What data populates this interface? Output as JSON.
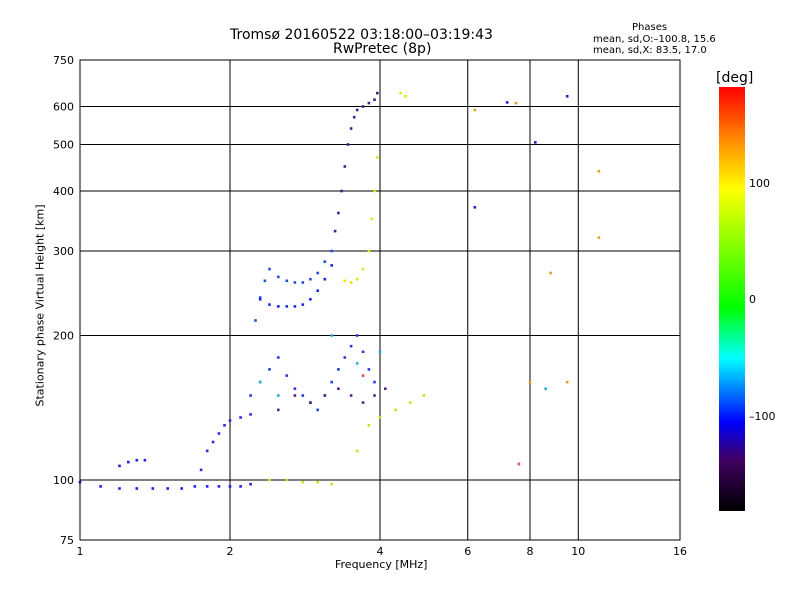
{
  "header": {
    "title_line1": "Tromsø 20160522 03:18:00–03:19:43",
    "title_line2": "RwPretec (8p)",
    "stats_heading": "Phases",
    "stats_line1": "mean, sd,O:–100.8, 15.6",
    "stats_line2": "mean, sd,X:  83.5, 17.0"
  },
  "colorbar": {
    "unit": "[deg]",
    "ticks": [
      "100",
      "0",
      "–100"
    ],
    "colors": [
      "#ff0000",
      "#ff9a00",
      "#ffff00",
      "#00ff00",
      "#00ffff",
      "#0000ff",
      "#400060",
      "#000000"
    ]
  },
  "chart_data": {
    "type": "scatter",
    "xlabel": "Frequency [MHz]",
    "ylabel": "Stationary phase Virtual Height [km]",
    "x_scale": "log2",
    "y_scale": "log",
    "xlim": [
      1,
      16
    ],
    "ylim": [
      75,
      750
    ],
    "x_ticks": [
      "1",
      "2",
      "4",
      "6",
      "8",
      "10",
      "16"
    ],
    "y_ticks": [
      "75",
      "100",
      "200",
      "300",
      "400",
      "500",
      "600",
      "750"
    ],
    "grid": true,
    "series": [
      {
        "color": "#1e1ee6",
        "points": [
          [
            1.0,
            99
          ],
          [
            1.1,
            97
          ],
          [
            1.2,
            96
          ],
          [
            1.3,
            96
          ],
          [
            1.4,
            96
          ],
          [
            1.5,
            96
          ],
          [
            1.6,
            96
          ],
          [
            1.7,
            97
          ],
          [
            1.8,
            97
          ],
          [
            1.9,
            97
          ],
          [
            2.0,
            97
          ],
          [
            2.1,
            97
          ],
          [
            2.2,
            98
          ]
        ]
      },
      {
        "color": "#2020e0",
        "points": [
          [
            1.2,
            107
          ],
          [
            1.25,
            109
          ],
          [
            1.3,
            110
          ],
          [
            1.35,
            110
          ]
        ]
      },
      {
        "color": "#2a2ae0",
        "points": [
          [
            1.75,
            105
          ],
          [
            1.8,
            115
          ],
          [
            1.85,
            120
          ],
          [
            1.9,
            125
          ],
          [
            1.95,
            130
          ],
          [
            2.0,
            133
          ],
          [
            2.1,
            135
          ],
          [
            2.2,
            137
          ]
        ]
      },
      {
        "color": "#2a3adc",
        "points": [
          [
            2.2,
            150
          ],
          [
            2.3,
            160
          ],
          [
            2.4,
            170
          ],
          [
            2.5,
            180
          ],
          [
            2.6,
            165
          ],
          [
            2.7,
            155
          ],
          [
            2.8,
            150
          ],
          [
            2.9,
            145
          ],
          [
            3.0,
            140
          ],
          [
            3.1,
            150
          ],
          [
            3.2,
            160
          ],
          [
            3.3,
            170
          ],
          [
            3.4,
            180
          ],
          [
            3.5,
            190
          ],
          [
            3.6,
            200
          ],
          [
            3.7,
            185
          ],
          [
            3.8,
            170
          ],
          [
            3.9,
            160
          ]
        ]
      },
      {
        "color": "#2050e0",
        "points": [
          [
            2.25,
            215
          ],
          [
            2.3,
            240
          ],
          [
            2.35,
            260
          ],
          [
            2.4,
            275
          ],
          [
            2.5,
            265
          ],
          [
            2.6,
            260
          ],
          [
            2.7,
            258
          ],
          [
            2.8,
            258
          ],
          [
            2.9,
            262
          ],
          [
            3.0,
            270
          ],
          [
            3.1,
            285
          ],
          [
            3.2,
            300
          ]
        ]
      },
      {
        "color": "#1a2ae6",
        "points": [
          [
            2.3,
            238
          ],
          [
            2.4,
            232
          ],
          [
            2.5,
            230
          ],
          [
            2.6,
            230
          ],
          [
            2.7,
            230
          ],
          [
            2.8,
            232
          ],
          [
            2.9,
            238
          ],
          [
            3.0,
            248
          ],
          [
            3.1,
            262
          ],
          [
            3.2,
            280
          ]
        ]
      },
      {
        "color": "#40208a",
        "points": [
          [
            3.25,
            330
          ],
          [
            3.3,
            360
          ],
          [
            3.35,
            400
          ],
          [
            3.4,
            450
          ],
          [
            3.45,
            500
          ],
          [
            3.5,
            540
          ],
          [
            3.55,
            570
          ],
          [
            3.6,
            590
          ],
          [
            3.7,
            600
          ],
          [
            3.8,
            610
          ],
          [
            3.9,
            620
          ],
          [
            3.95,
            640
          ]
        ]
      },
      {
        "color": "#5a2090",
        "points": [
          [
            2.5,
            140
          ],
          [
            2.7,
            150
          ],
          [
            2.9,
            145
          ],
          [
            3.1,
            150
          ],
          [
            3.3,
            155
          ],
          [
            3.5,
            150
          ],
          [
            3.7,
            145
          ],
          [
            3.9,
            150
          ],
          [
            4.1,
            155
          ]
        ]
      },
      {
        "color": "#e6e610",
        "points": [
          [
            3.4,
            260
          ],
          [
            3.5,
            258
          ],
          [
            3.6,
            262
          ],
          [
            3.7,
            275
          ],
          [
            3.8,
            300
          ],
          [
            3.85,
            350
          ],
          [
            3.9,
            400
          ],
          [
            3.95,
            470
          ],
          [
            4.4,
            640
          ],
          [
            4.5,
            630
          ]
        ]
      },
      {
        "color": "#c8e020",
        "points": [
          [
            2.4,
            100
          ],
          [
            2.6,
            100
          ],
          [
            2.8,
            99
          ],
          [
            3.0,
            99
          ],
          [
            3.2,
            98
          ],
          [
            3.6,
            115
          ],
          [
            3.8,
            130
          ],
          [
            4.0,
            135
          ],
          [
            4.3,
            140
          ],
          [
            4.6,
            145
          ],
          [
            4.9,
            150
          ]
        ]
      },
      {
        "color": "#20b0e0",
        "points": [
          [
            2.3,
            160
          ],
          [
            2.5,
            150
          ],
          [
            3.2,
            200
          ],
          [
            3.6,
            175
          ],
          [
            4.0,
            185
          ],
          [
            8.6,
            155
          ]
        ]
      },
      {
        "color": "#e0a020",
        "points": [
          [
            6.2,
            590
          ],
          [
            7.5,
            610
          ],
          [
            8.0,
            160
          ],
          [
            9.5,
            160
          ],
          [
            11.0,
            440
          ],
          [
            11.0,
            320
          ],
          [
            8.8,
            270
          ]
        ]
      },
      {
        "color": "#2020c8",
        "points": [
          [
            7.2,
            612
          ],
          [
            8.2,
            505
          ],
          [
            9.5,
            630
          ],
          [
            6.2,
            370
          ]
        ]
      },
      {
        "color": "#e05050",
        "points": [
          [
            7.6,
            108
          ],
          [
            3.7,
            165
          ]
        ]
      }
    ]
  }
}
